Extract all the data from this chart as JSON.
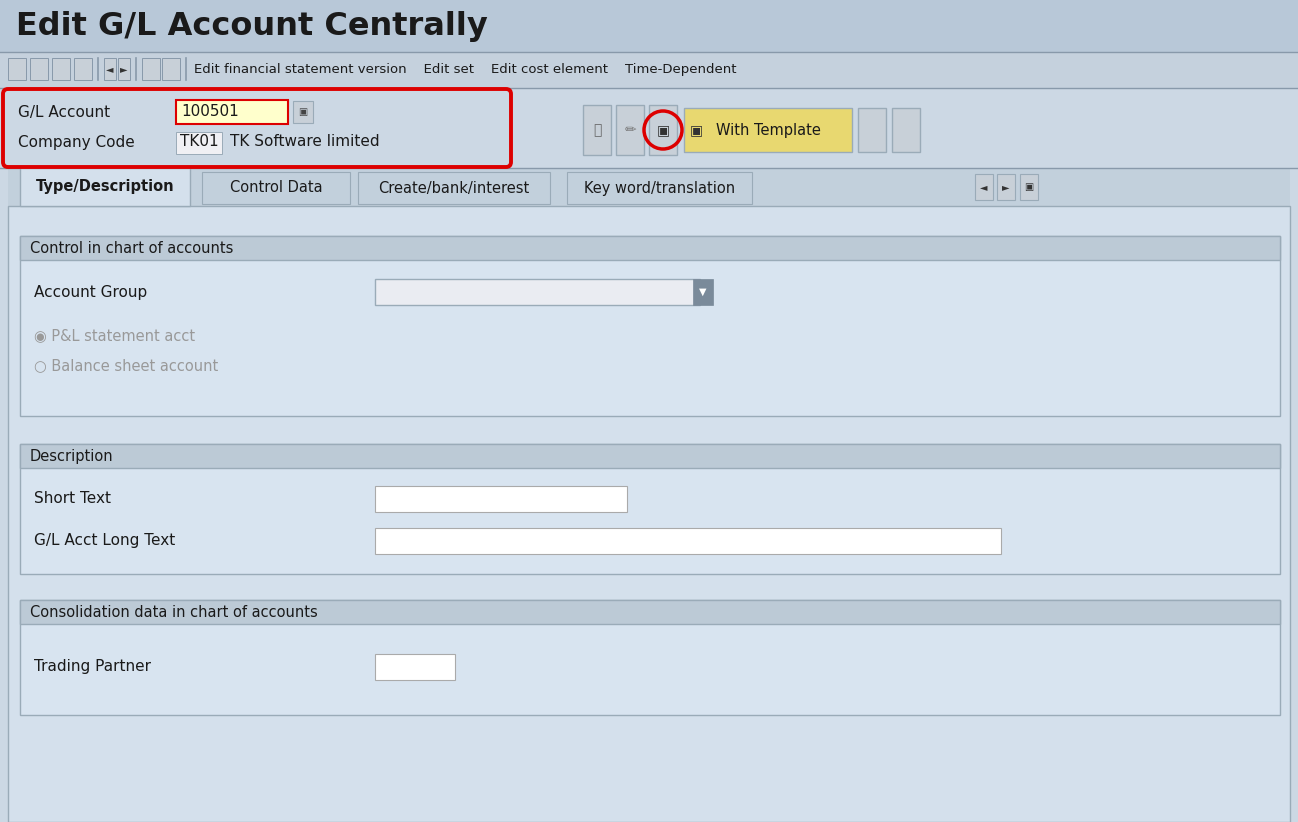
{
  "title": "Edit G/L Account Centrally",
  "toolbar_text": "Edit financial statement version    Edit set    Edit cost element    Time-Dependent",
  "gl_account_label": "G/L Account",
  "gl_account_value": "100501",
  "company_code_label": "Company Code",
  "company_code_value": "TK01",
  "company_name": "TK Software limited",
  "with_template_text": "With Template",
  "tabs": [
    "Type/Description",
    "Control Data",
    "Create/bank/interest",
    "Key word/translation"
  ],
  "section1_title": "Control in chart of accounts",
  "account_group_label": "Account Group",
  "pl_statement_label": "P&L statement acct",
  "balance_sheet_label": "Balance sheet account",
  "section2_title": "Description",
  "short_text_label": "Short Text",
  "long_text_label": "G/L Acct Long Text",
  "section3_title": "Consolidation data in chart of accounts",
  "trading_partner_label": "Trading Partner",
  "bg_color": "#ccd8e4",
  "header_bg": "#b8c8d8",
  "toolbar_bg": "#c5d1dd",
  "content_bg": "#d4e0ec",
  "section_header_bg": "#bccad6",
  "section_body_bg": "#d8e4f0",
  "tab_active_bg": "#d4e0ec",
  "tab_inactive_bg": "#c2d0dc",
  "field_bg": "#ffffff",
  "yellow_field_bg": "#ffffcc",
  "red_color": "#dd0000",
  "text_color": "#1a1a1a",
  "gray_text": "#999999",
  "button_bg": "#e8d870",
  "border_color": "#9aabb8",
  "icon_bg": "#c8d0d8",
  "separator_color": "#8899aa"
}
